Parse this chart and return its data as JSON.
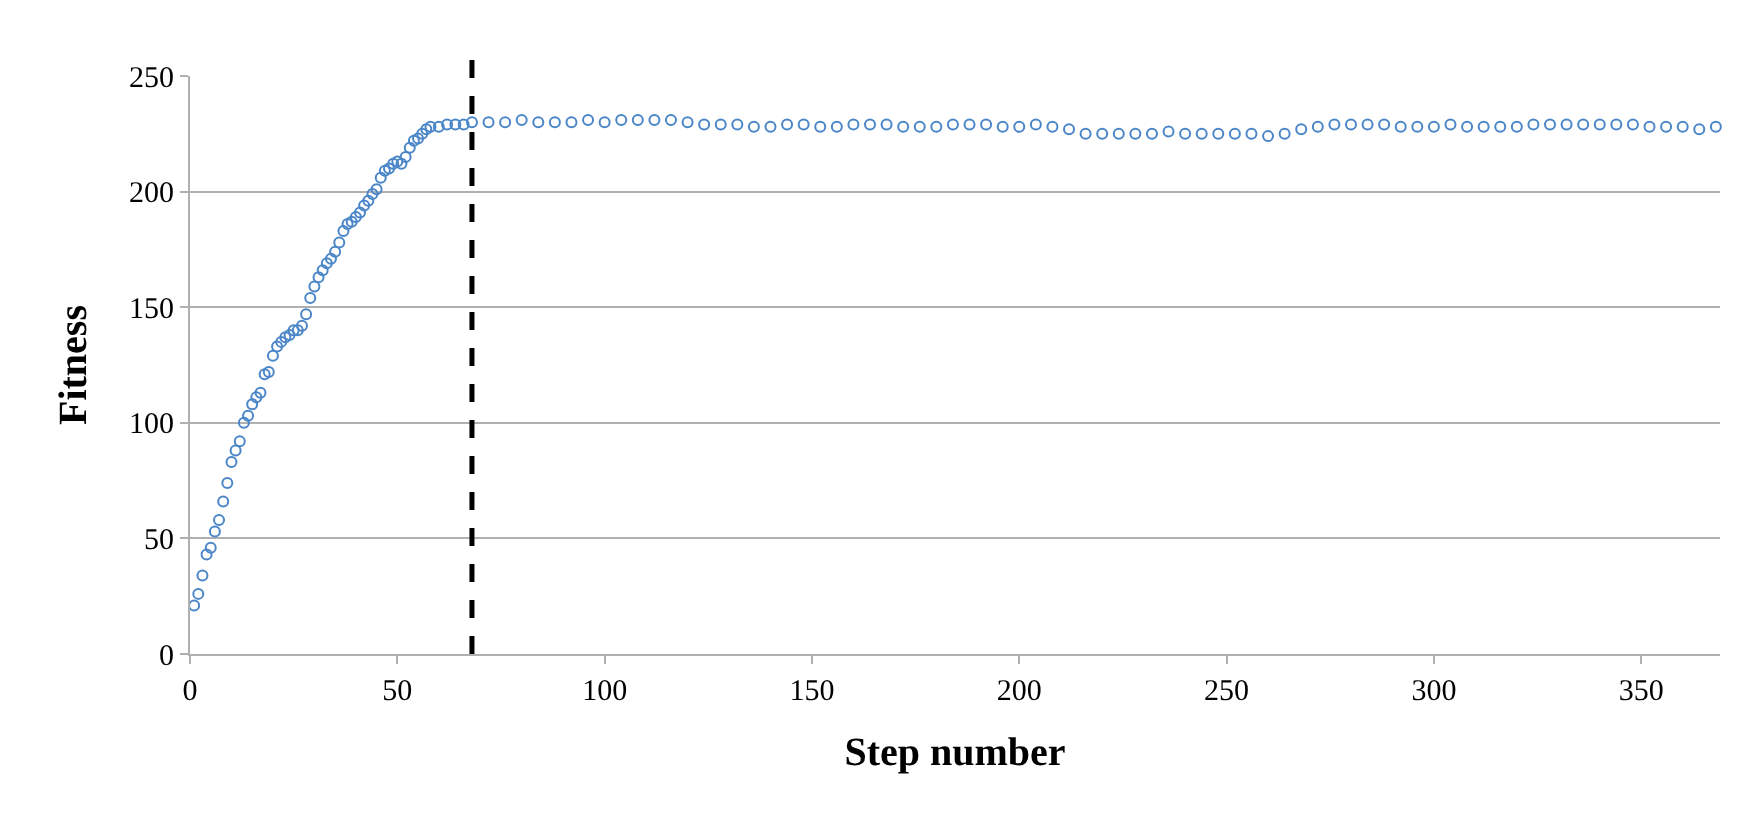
{
  "chart_data": {
    "type": "scatter",
    "xlabel": "Step number",
    "ylabel": "Fitness",
    "marker": "circle",
    "grid": "y",
    "xlim": [
      0,
      369
    ],
    "xticks": [
      0,
      50,
      100,
      150,
      200,
      250,
      300,
      350
    ],
    "ylim": [
      0,
      250
    ],
    "yticks": [
      0,
      50,
      100,
      150,
      200,
      250
    ],
    "ref_lines": [
      {
        "axis": "x",
        "value": 68,
        "color": "#000000",
        "line_style": "dashed"
      }
    ],
    "series": [
      {
        "color": "#4a86c8",
        "x": [
          1,
          2,
          3,
          4,
          5,
          6,
          7,
          8,
          9,
          10,
          11,
          12,
          13,
          14,
          15,
          16,
          17,
          18,
          19,
          20,
          21,
          22,
          23,
          24,
          25,
          26,
          27,
          28,
          29,
          30,
          31,
          32,
          33,
          34,
          35,
          36,
          37,
          38,
          39,
          40,
          41,
          42,
          43,
          44,
          45,
          46,
          47,
          48,
          49,
          50,
          51,
          52,
          53,
          54,
          55,
          56,
          57,
          58,
          60,
          62,
          64,
          66,
          68,
          72,
          76,
          80,
          84,
          88,
          92,
          96,
          100,
          104,
          108,
          112,
          116,
          120,
          124,
          128,
          132,
          136,
          140,
          144,
          148,
          152,
          156,
          160,
          164,
          168,
          172,
          176,
          180,
          184,
          188,
          192,
          196,
          200,
          204,
          208,
          212,
          216,
          220,
          224,
          228,
          232,
          236,
          240,
          244,
          248,
          252,
          256,
          260,
          264,
          268,
          272,
          276,
          280,
          284,
          288,
          292,
          296,
          300,
          304,
          308,
          312,
          316,
          320,
          324,
          328,
          332,
          336,
          340,
          344,
          348,
          352,
          356,
          360,
          364,
          368
        ],
        "values": [
          21,
          26,
          34,
          43,
          46,
          53,
          58,
          66,
          74,
          83,
          88,
          92,
          100,
          103,
          108,
          111,
          113,
          121,
          122,
          129,
          133,
          135,
          137,
          138,
          140,
          140,
          142,
          147,
          154,
          159,
          163,
          166,
          169,
          171,
          174,
          178,
          183,
          186,
          187,
          189,
          191,
          194,
          196,
          199,
          201,
          206,
          209,
          210,
          212,
          213,
          212,
          215,
          219,
          222,
          223,
          225,
          227,
          228,
          228,
          229,
          229,
          229,
          230,
          230,
          230,
          231,
          230,
          230,
          230,
          231,
          230,
          231,
          231,
          231,
          231,
          230,
          229,
          229,
          229,
          228,
          228,
          229,
          229,
          228,
          228,
          229,
          229,
          229,
          228,
          228,
          228,
          229,
          229,
          229,
          228,
          228,
          229,
          228,
          227,
          225,
          225,
          225,
          225,
          225,
          226,
          225,
          225,
          225,
          225,
          225,
          224,
          225,
          227,
          228,
          229,
          229,
          229,
          229,
          228,
          228,
          228,
          229,
          228,
          228,
          228,
          228,
          229,
          229,
          229,
          229,
          229,
          229,
          229,
          228,
          228,
          228,
          227,
          228
        ]
      }
    ]
  }
}
